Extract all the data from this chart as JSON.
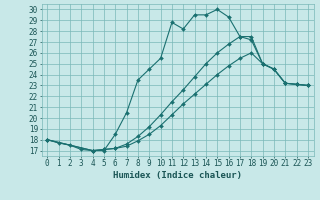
{
  "xlabel": "Humidex (Indice chaleur)",
  "background_color": "#c8e8e8",
  "grid_color": "#7ab8b8",
  "line_color": "#1a7070",
  "xlim": [
    -0.5,
    23.5
  ],
  "ylim": [
    16.5,
    30.5
  ],
  "xticks": [
    0,
    1,
    2,
    3,
    4,
    5,
    6,
    7,
    8,
    9,
    10,
    11,
    12,
    13,
    14,
    15,
    16,
    17,
    18,
    19,
    20,
    21,
    22,
    23
  ],
  "yticks": [
    17,
    18,
    19,
    20,
    21,
    22,
    23,
    24,
    25,
    26,
    27,
    28,
    29,
    30
  ],
  "line_main": {
    "x": [
      0,
      1,
      2,
      3,
      4,
      5,
      6,
      7,
      8,
      9,
      10,
      11,
      12,
      13,
      14,
      15,
      16,
      17,
      18,
      19,
      20,
      21,
      22,
      23
    ],
    "y": [
      18.0,
      17.7,
      17.5,
      17.1,
      17.0,
      17.0,
      18.5,
      20.5,
      23.5,
      24.5,
      25.5,
      28.8,
      28.2,
      29.5,
      29.5,
      30.0,
      29.3,
      27.5,
      27.2,
      25.0,
      24.5,
      23.2,
      23.1,
      23.0
    ]
  },
  "line_upper": {
    "x": [
      0,
      4,
      5,
      6,
      7,
      8,
      9,
      10,
      11,
      12,
      13,
      14,
      15,
      16,
      17,
      18,
      19,
      20,
      21,
      22,
      23
    ],
    "y": [
      18.0,
      17.0,
      17.1,
      17.2,
      17.6,
      18.3,
      19.2,
      20.3,
      21.5,
      22.6,
      23.8,
      25.0,
      26.0,
      26.8,
      27.5,
      27.5,
      25.0,
      24.5,
      23.2,
      23.1,
      23.0
    ]
  },
  "line_lower": {
    "x": [
      0,
      4,
      5,
      6,
      7,
      8,
      9,
      10,
      11,
      12,
      13,
      14,
      15,
      16,
      17,
      18,
      19,
      20,
      21,
      22,
      23
    ],
    "y": [
      18.0,
      17.0,
      17.1,
      17.2,
      17.4,
      17.9,
      18.5,
      19.3,
      20.3,
      21.3,
      22.2,
      23.1,
      24.0,
      24.8,
      25.5,
      26.0,
      25.0,
      24.5,
      23.2,
      23.1,
      23.0
    ]
  },
  "tick_fontsize": 5.5,
  "xlabel_fontsize": 6.5
}
